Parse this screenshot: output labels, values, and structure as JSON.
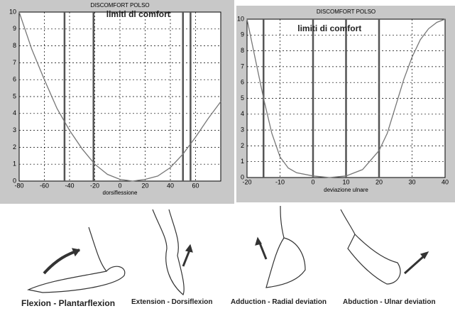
{
  "chart_data": [
    {
      "type": "line",
      "title": "DISCOMFORT POLSO",
      "x_label": "dorsiflessione",
      "annotation": "limiti di comfort",
      "x": [
        -80,
        -70,
        -60,
        -50,
        -40,
        -30,
        -20,
        -10,
        0,
        10,
        20,
        30,
        40,
        50,
        60,
        70,
        80
      ],
      "series": [
        {
          "color": "#777777",
          "values": [
            10,
            7.8,
            6,
            4.3,
            3,
            1.9,
            1,
            0.4,
            0.1,
            0,
            0.1,
            0.3,
            0.8,
            1.6,
            2.6,
            3.7,
            4.7
          ]
        }
      ],
      "vlines": [
        -44,
        -21,
        50,
        56
      ],
      "xlim": [
        -80,
        80
      ],
      "xticks": [
        -80,
        -60,
        -40,
        -20,
        0,
        20,
        40,
        60
      ],
      "ylim": [
        0,
        10
      ],
      "yticks": [
        0,
        1,
        2,
        3,
        4,
        5,
        6,
        7,
        8,
        9,
        10
      ],
      "grid": true
    },
    {
      "type": "line",
      "title": "DISCOMFORT POLSO",
      "x_label": "deviazione ulnare",
      "annotation": "limiti di comfort",
      "x": [
        -20,
        -17.5,
        -15,
        -12.5,
        -10,
        -7.5,
        -5,
        0,
        5,
        10,
        15,
        20,
        22.5,
        25,
        27.5,
        30,
        32.5,
        35,
        37.5,
        40
      ],
      "series": [
        {
          "color": "#777777",
          "values": [
            10,
            7.5,
            5,
            2.8,
            1.3,
            0.6,
            0.3,
            0.1,
            0,
            0.1,
            0.5,
            1.7,
            2.8,
            4.5,
            6.2,
            7.6,
            8.7,
            9.4,
            9.8,
            10
          ]
        }
      ],
      "vlines": [
        -15,
        0,
        10,
        20
      ],
      "xlim": [
        -20,
        40
      ],
      "xticks": [
        -20,
        -10,
        0,
        10,
        20,
        30,
        40
      ],
      "ylim": [
        0,
        10
      ],
      "yticks": [
        0,
        1,
        2,
        3,
        4,
        5,
        6,
        7,
        8,
        9,
        10
      ],
      "grid": true
    }
  ],
  "captions": [
    "Flexion - Plantarflexion",
    "Extension - Dorsiflexion",
    "Adduction - Radial deviation",
    "Abduction - Ulnar deviation"
  ]
}
